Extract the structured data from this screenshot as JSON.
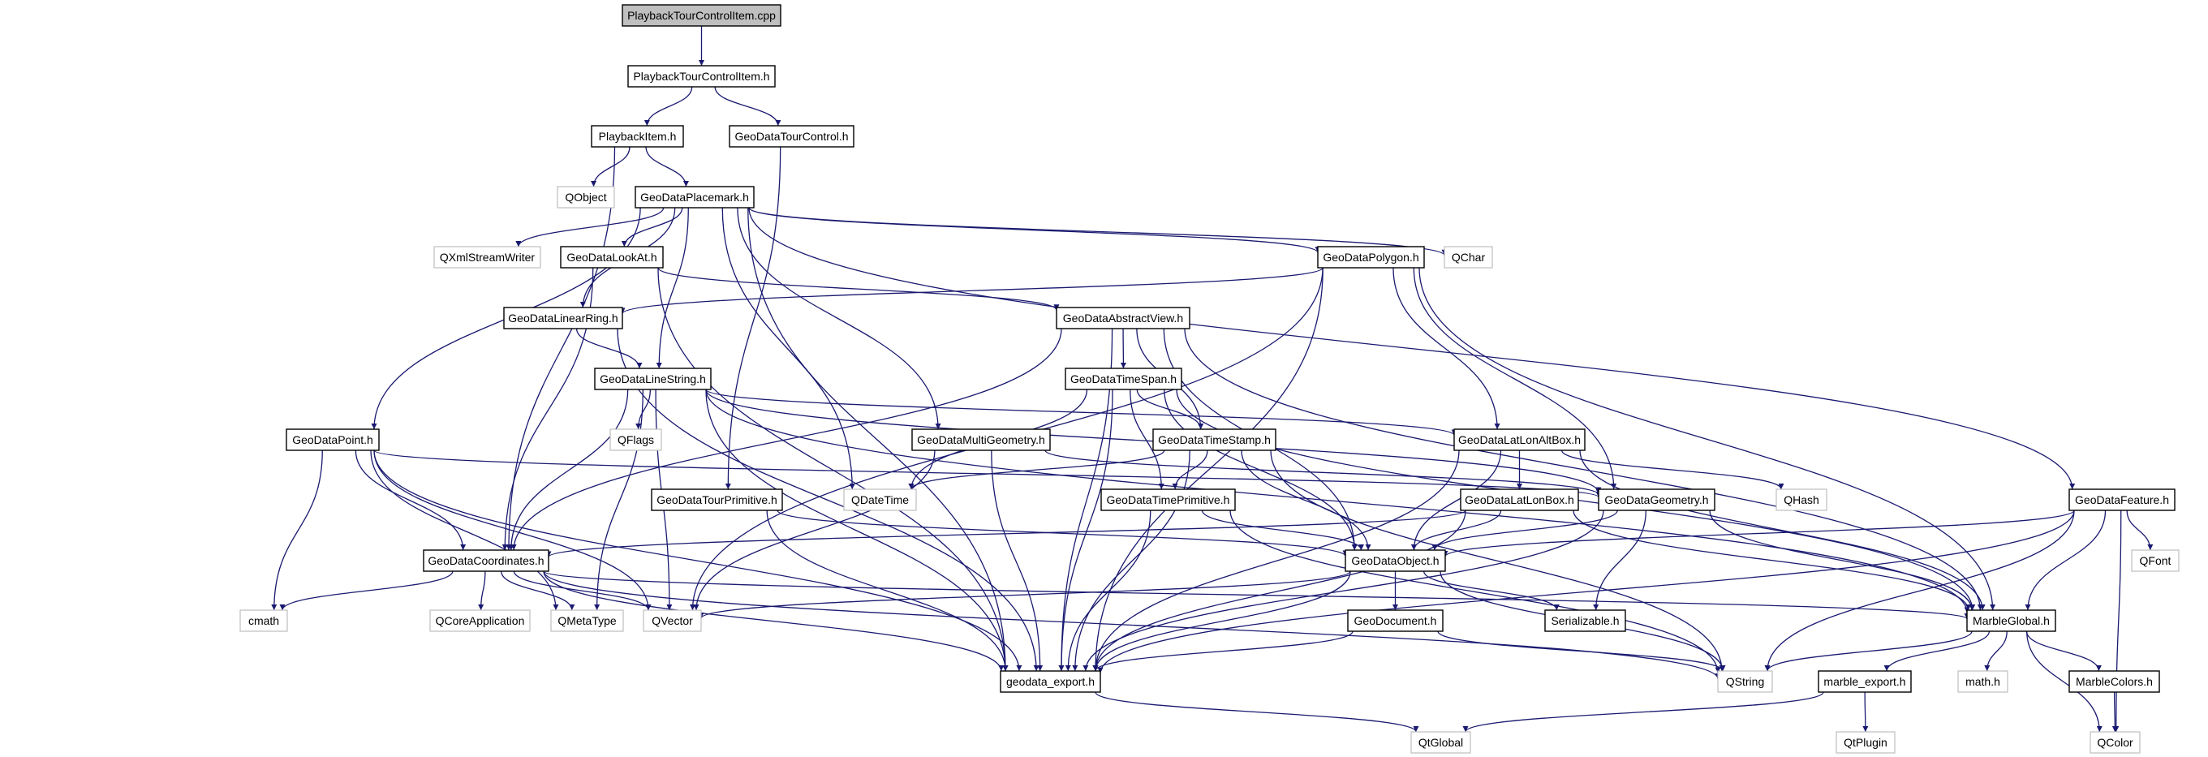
{
  "diagram": {
    "type": "include-dependency-graph",
    "edge_color": "#191970",
    "node_styles": {
      "source": {
        "fill": "#bfbfbf",
        "border": "#000000"
      },
      "internal": {
        "fill": "#ffffff",
        "border": "#000000"
      },
      "external": {
        "fill": "#ffffff",
        "border": "#bfbfbf"
      }
    },
    "nodes": [
      {
        "id": "cpp",
        "label": "PlaybackTourControlItem.cpp",
        "style": "source"
      },
      {
        "id": "tcih",
        "label": "PlaybackTourControlItem.h",
        "style": "internal"
      },
      {
        "id": "pitem",
        "label": "PlaybackItem.h",
        "style": "internal"
      },
      {
        "id": "tourctl",
        "label": "GeoDataTourControl.h",
        "style": "internal"
      },
      {
        "id": "qobject",
        "label": "QObject",
        "style": "external"
      },
      {
        "id": "placemark",
        "label": "GeoDataPlacemark.h",
        "style": "internal"
      },
      {
        "id": "qxml",
        "label": "QXmlStreamWriter",
        "style": "external"
      },
      {
        "id": "lookat",
        "label": "GeoDataLookAt.h",
        "style": "internal"
      },
      {
        "id": "polygon",
        "label": "GeoDataPolygon.h",
        "style": "internal"
      },
      {
        "id": "qchar",
        "label": "QChar",
        "style": "external"
      },
      {
        "id": "linearring",
        "label": "GeoDataLinearRing.h",
        "style": "internal"
      },
      {
        "id": "abstractview",
        "label": "GeoDataAbstractView.h",
        "style": "internal"
      },
      {
        "id": "linestring",
        "label": "GeoDataLineString.h",
        "style": "internal"
      },
      {
        "id": "timespan",
        "label": "GeoDataTimeSpan.h",
        "style": "internal"
      },
      {
        "id": "qflags",
        "label": "QFlags",
        "style": "external"
      },
      {
        "id": "point",
        "label": "GeoDataPoint.h",
        "style": "internal"
      },
      {
        "id": "multigeom",
        "label": "GeoDataMultiGeometry.h",
        "style": "internal"
      },
      {
        "id": "timestamp",
        "label": "GeoDataTimeStamp.h",
        "style": "internal"
      },
      {
        "id": "latlonalt",
        "label": "GeoDataLatLonAltBox.h",
        "style": "internal"
      },
      {
        "id": "tourprim",
        "label": "GeoDataTourPrimitive.h",
        "style": "internal"
      },
      {
        "id": "qdatetime",
        "label": "QDateTime",
        "style": "external"
      },
      {
        "id": "timeprim",
        "label": "GeoDataTimePrimitive.h",
        "style": "internal"
      },
      {
        "id": "latlon",
        "label": "GeoDataLatLonBox.h",
        "style": "internal"
      },
      {
        "id": "geometry",
        "label": "GeoDataGeometry.h",
        "style": "internal"
      },
      {
        "id": "qhash",
        "label": "QHash",
        "style": "external"
      },
      {
        "id": "feature",
        "label": "GeoDataFeature.h",
        "style": "internal"
      },
      {
        "id": "coords",
        "label": "GeoDataCoordinates.h",
        "style": "internal"
      },
      {
        "id": "object",
        "label": "GeoDataObject.h",
        "style": "internal"
      },
      {
        "id": "qfont",
        "label": "QFont",
        "style": "external"
      },
      {
        "id": "cmath",
        "label": "cmath",
        "style": "external"
      },
      {
        "id": "qcoreapp",
        "label": "QCoreApplication",
        "style": "external"
      },
      {
        "id": "qmetatype",
        "label": "QMetaType",
        "style": "external"
      },
      {
        "id": "qvector",
        "label": "QVector",
        "style": "external"
      },
      {
        "id": "geodoc",
        "label": "GeoDocument.h",
        "style": "internal"
      },
      {
        "id": "serializable",
        "label": "Serializable.h",
        "style": "internal"
      },
      {
        "id": "marbleglobal",
        "label": "MarbleGlobal.h",
        "style": "internal"
      },
      {
        "id": "geoexport",
        "label": "geodata_export.h",
        "style": "internal"
      },
      {
        "id": "qstring",
        "label": "QString",
        "style": "external"
      },
      {
        "id": "marbleexport",
        "label": "marble_export.h",
        "style": "internal"
      },
      {
        "id": "mathh",
        "label": "math.h",
        "style": "external"
      },
      {
        "id": "marblecolors",
        "label": "MarbleColors.h",
        "style": "internal"
      },
      {
        "id": "qtglobal",
        "label": "QtGlobal",
        "style": "external"
      },
      {
        "id": "qtplugin",
        "label": "QtPlugin",
        "style": "external"
      },
      {
        "id": "qcolor",
        "label": "QColor",
        "style": "external"
      }
    ],
    "edges": [
      [
        "cpp",
        "tcih"
      ],
      [
        "tcih",
        "pitem"
      ],
      [
        "tcih",
        "tourctl"
      ],
      [
        "pitem",
        "qobject"
      ],
      [
        "pitem",
        "placemark"
      ],
      [
        "pitem",
        "coords"
      ],
      [
        "tourctl",
        "tourprim"
      ],
      [
        "placemark",
        "qxml"
      ],
      [
        "placemark",
        "lookat"
      ],
      [
        "placemark",
        "linearring"
      ],
      [
        "placemark",
        "linestring"
      ],
      [
        "placemark",
        "point"
      ],
      [
        "placemark",
        "multigeom"
      ],
      [
        "placemark",
        "qdatetime"
      ],
      [
        "placemark",
        "polygon"
      ],
      [
        "placemark",
        "qchar"
      ],
      [
        "placemark",
        "feature"
      ],
      [
        "placemark",
        "geoexport"
      ],
      [
        "lookat",
        "abstractview"
      ],
      [
        "lookat",
        "coords"
      ],
      [
        "lookat",
        "geoexport"
      ],
      [
        "polygon",
        "linearring"
      ],
      [
        "polygon",
        "latlonalt"
      ],
      [
        "polygon",
        "geometry"
      ],
      [
        "polygon",
        "geoexport"
      ],
      [
        "polygon",
        "marbleglobal"
      ],
      [
        "polygon",
        "qvector"
      ],
      [
        "linearring",
        "linestring"
      ],
      [
        "linearring",
        "geoexport"
      ],
      [
        "abstractview",
        "timespan"
      ],
      [
        "abstractview",
        "timestamp"
      ],
      [
        "abstractview",
        "object"
      ],
      [
        "abstractview",
        "coords"
      ],
      [
        "abstractview",
        "marbleglobal"
      ],
      [
        "abstractview",
        "geoexport"
      ],
      [
        "linestring",
        "qflags"
      ],
      [
        "linestring",
        "qvector"
      ],
      [
        "linestring",
        "qmetatype"
      ],
      [
        "linestring",
        "coords"
      ],
      [
        "linestring",
        "geoexport"
      ],
      [
        "linestring",
        "latlonalt"
      ],
      [
        "linestring",
        "geometry"
      ],
      [
        "linestring",
        "marbleglobal"
      ],
      [
        "timespan",
        "timestamp"
      ],
      [
        "timespan",
        "timeprim"
      ],
      [
        "timespan",
        "qdatetime"
      ],
      [
        "timespan",
        "object"
      ],
      [
        "timespan",
        "geoexport"
      ],
      [
        "timespan",
        "marbleglobal"
      ],
      [
        "point",
        "cmath"
      ],
      [
        "point",
        "coords"
      ],
      [
        "point",
        "qmetatype"
      ],
      [
        "point",
        "qvector"
      ],
      [
        "point",
        "geoexport"
      ],
      [
        "point",
        "geometry"
      ],
      [
        "multigeom",
        "geometry"
      ],
      [
        "multigeom",
        "qvector"
      ],
      [
        "multigeom",
        "geoexport"
      ],
      [
        "timestamp",
        "timeprim"
      ],
      [
        "timestamp",
        "qdatetime"
      ],
      [
        "timestamp",
        "object"
      ],
      [
        "timestamp",
        "geoexport"
      ],
      [
        "timestamp",
        "qstring"
      ],
      [
        "latlonalt",
        "latlon"
      ],
      [
        "latlonalt",
        "object"
      ],
      [
        "latlonalt",
        "qhash"
      ],
      [
        "latlonalt",
        "marbleglobal"
      ],
      [
        "latlonalt",
        "geoexport"
      ],
      [
        "tourprim",
        "object"
      ],
      [
        "tourprim",
        "geoexport"
      ],
      [
        "timeprim",
        "object"
      ],
      [
        "timeprim",
        "geoexport"
      ],
      [
        "timeprim",
        "qstring"
      ],
      [
        "latlon",
        "object"
      ],
      [
        "latlon",
        "coords"
      ],
      [
        "latlon",
        "marbleglobal"
      ],
      [
        "latlon",
        "geoexport"
      ],
      [
        "geometry",
        "object"
      ],
      [
        "geometry",
        "serializable"
      ],
      [
        "geometry",
        "marbleglobal"
      ],
      [
        "geometry",
        "geoexport"
      ],
      [
        "feature",
        "object"
      ],
      [
        "feature",
        "marbleglobal"
      ],
      [
        "feature",
        "qfont"
      ],
      [
        "feature",
        "qcolor"
      ],
      [
        "feature",
        "qstring"
      ],
      [
        "feature",
        "geoexport"
      ],
      [
        "coords",
        "cmath"
      ],
      [
        "coords",
        "qcoreapp"
      ],
      [
        "coords",
        "qmetatype"
      ],
      [
        "coords",
        "qvector"
      ],
      [
        "coords",
        "geoexport"
      ],
      [
        "coords",
        "qstring"
      ],
      [
        "coords",
        "marbleglobal"
      ],
      [
        "object",
        "geodoc"
      ],
      [
        "object",
        "serializable"
      ],
      [
        "object",
        "qvector"
      ],
      [
        "object",
        "geoexport"
      ],
      [
        "object",
        "qstring"
      ],
      [
        "geodoc",
        "geoexport"
      ],
      [
        "geodoc",
        "qstring"
      ],
      [
        "marbleglobal",
        "qstring"
      ],
      [
        "marbleglobal",
        "marbleexport"
      ],
      [
        "marbleglobal",
        "mathh"
      ],
      [
        "marbleglobal",
        "marblecolors"
      ],
      [
        "marbleglobal",
        "qcolor"
      ],
      [
        "marbleexport",
        "qtglobal"
      ],
      [
        "marbleexport",
        "qtplugin"
      ],
      [
        "marblecolors",
        "qcolor"
      ],
      [
        "geoexport",
        "qtglobal"
      ]
    ]
  }
}
